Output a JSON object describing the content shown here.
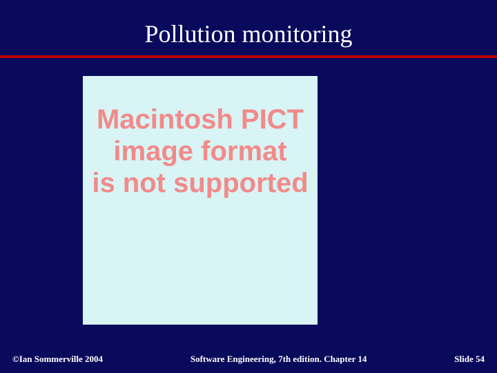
{
  "slide": {
    "background_color": "#0a0a5c",
    "title": "Pollution monitoring",
    "title_color": "#ffffff",
    "title_fontsize": 36,
    "divider_color": "#c00000",
    "divider_thickness": 4
  },
  "content": {
    "panel_background": "#d8f4f4",
    "error_text_lines": [
      "Macintosh PICT",
      "image format",
      "is not supported"
    ],
    "error_text_color": "#f28a8a",
    "error_text_fontsize": 40,
    "error_text_weight": "bold",
    "error_text_font": "Arial"
  },
  "footer": {
    "left": "©Ian Sommerville 2004",
    "center": "Software Engineering, 7th edition. Chapter 14",
    "right": "Slide 54",
    "text_color": "#ffffff",
    "fontsize": 13
  }
}
